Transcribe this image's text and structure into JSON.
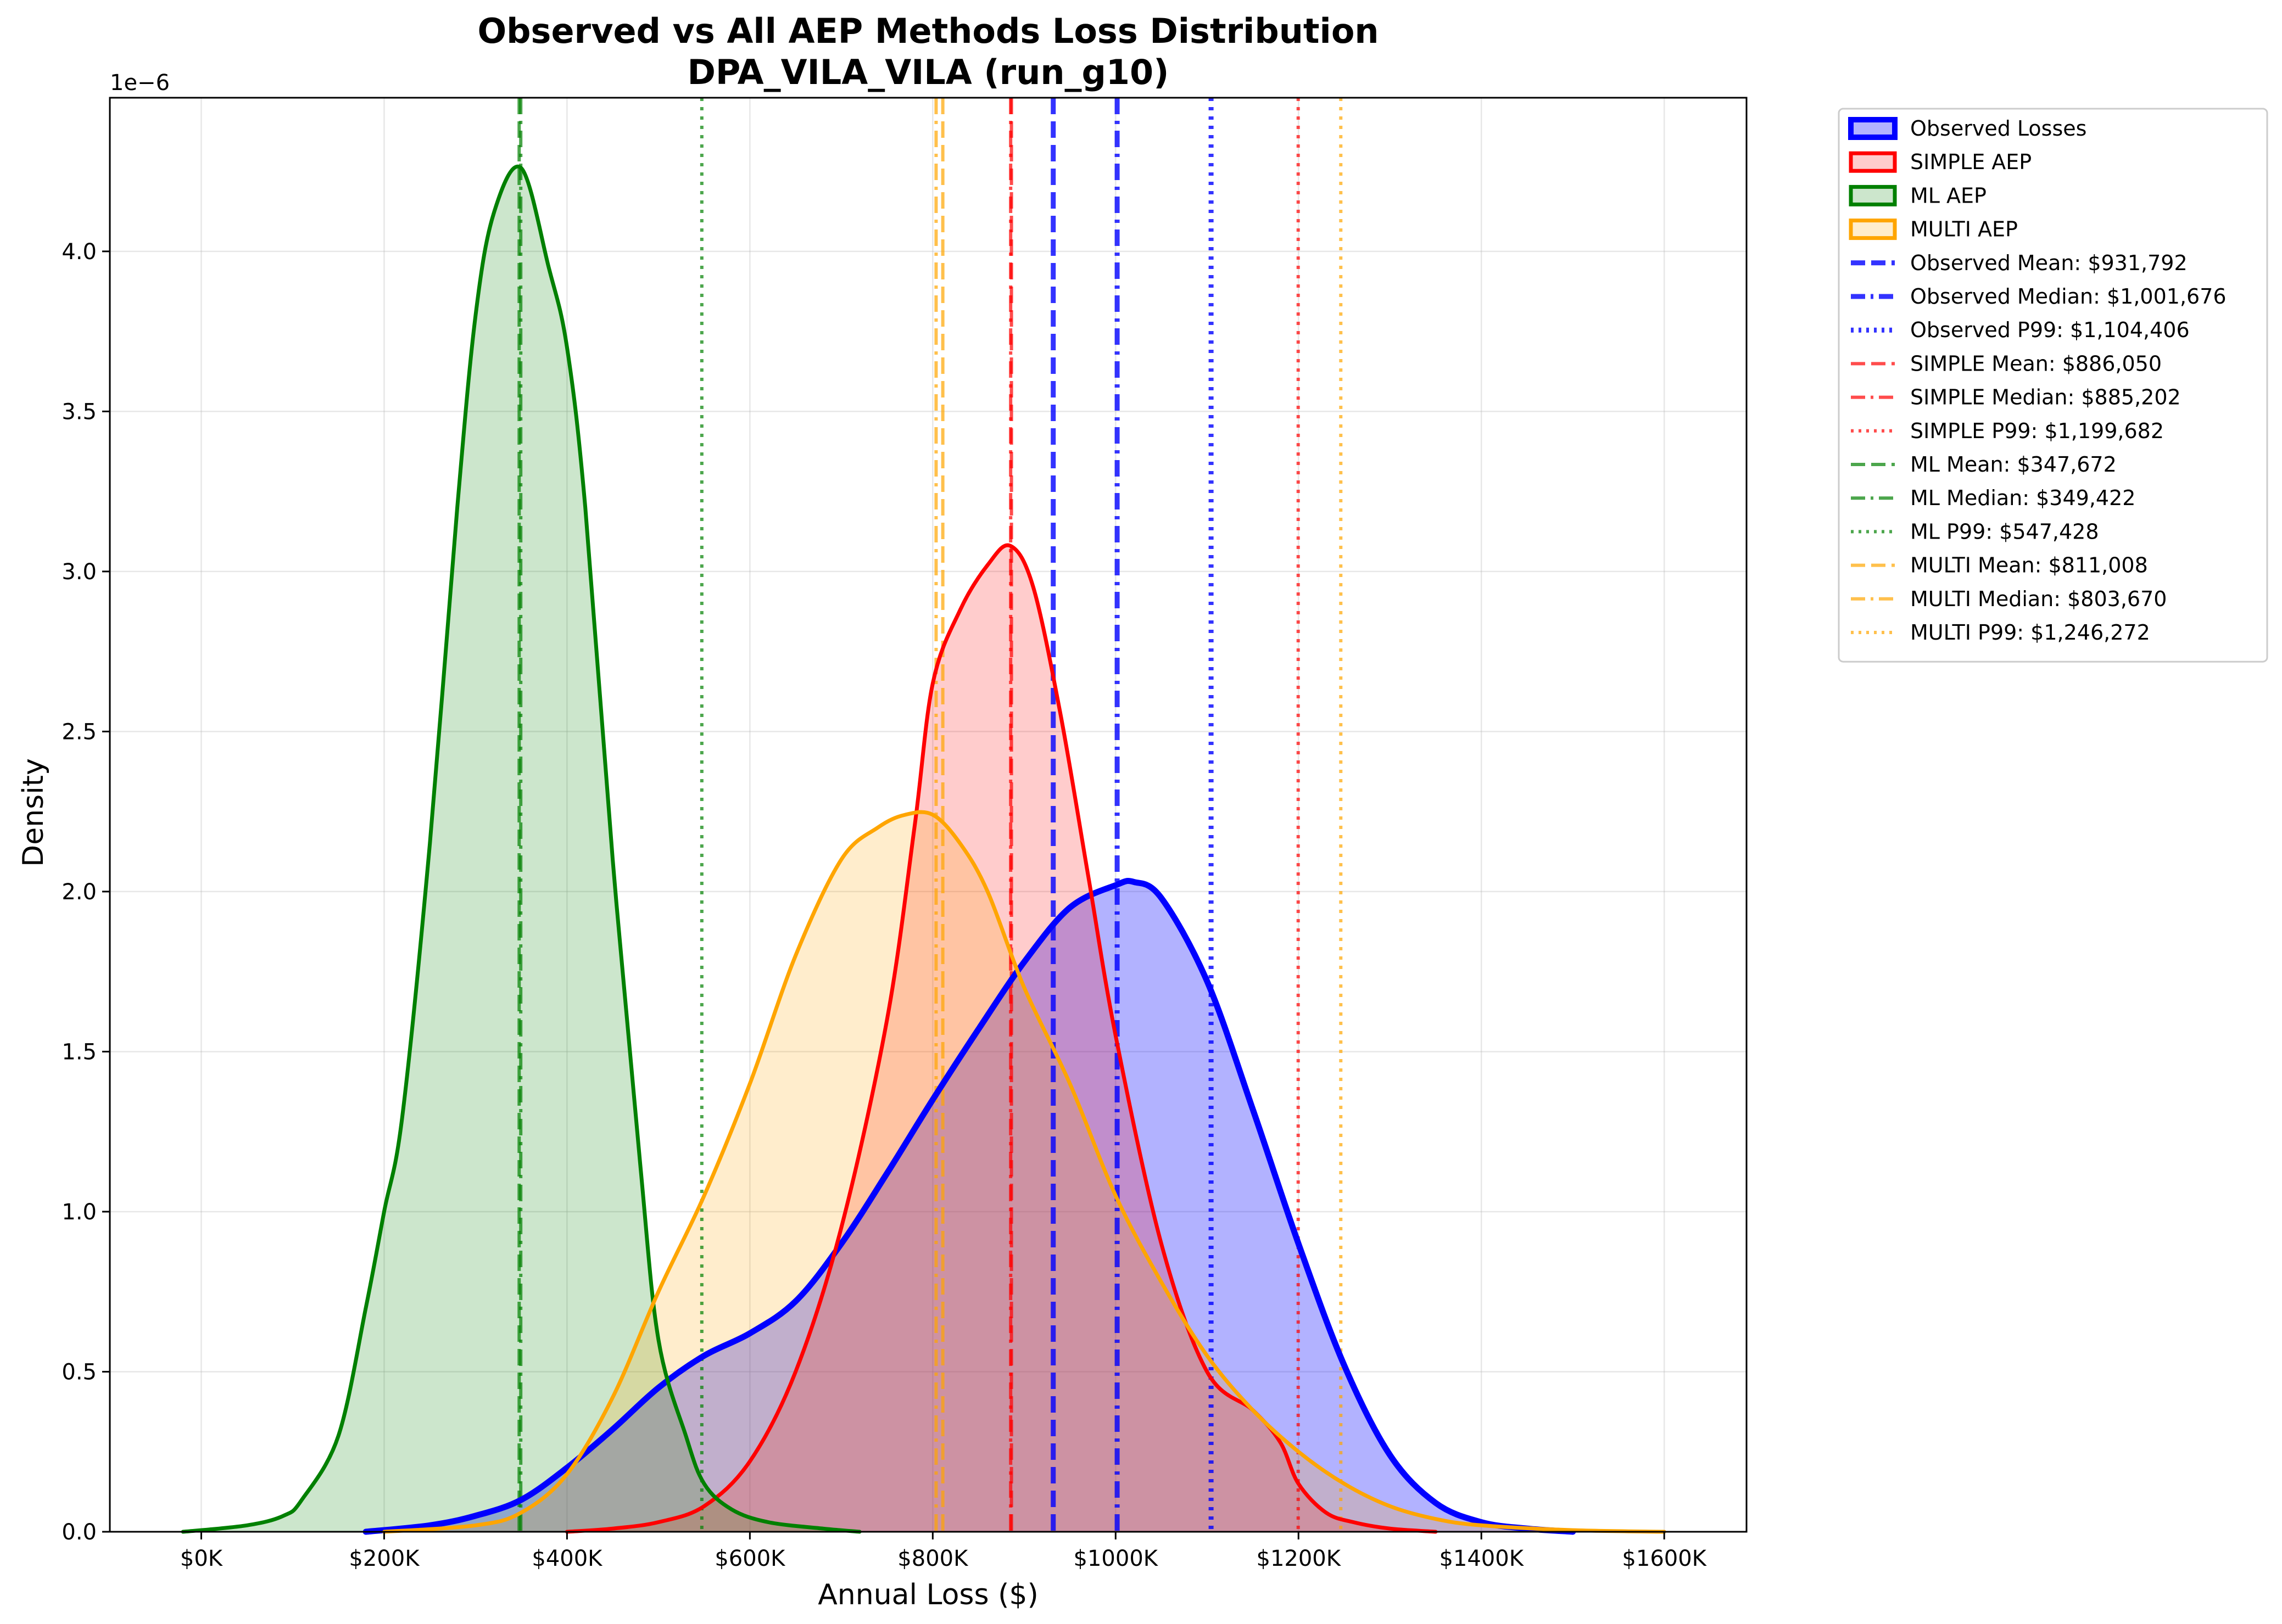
{
  "chart_data": {
    "type": "area",
    "title": "Observed vs All AEP Methods Loss Distribution",
    "subtitle": "DPA_VILA_VILA (run_g10)",
    "xlabel": "Annual Loss ($)",
    "ylabel": "Density",
    "y_scale_label": "1e−6",
    "y_multiplier": 1e-06,
    "xlim": [
      -100000,
      1690000
    ],
    "ylim": [
      0,
      4.48
    ],
    "x_ticks": [
      0,
      200000,
      400000,
      600000,
      800000,
      1000000,
      1200000,
      1400000,
      1600000
    ],
    "x_tick_labels": [
      "$0K",
      "$200K",
      "$400K",
      "$600K",
      "$800K",
      "$1000K",
      "$1200K",
      "$1400K",
      "$1600K"
    ],
    "y_ticks": [
      0,
      0.5,
      1.0,
      1.5,
      2.0,
      2.5,
      3.0,
      3.5,
      4.0
    ],
    "y_tick_labels": [
      "0.0",
      "0.5",
      "1.0",
      "1.5",
      "2.0",
      "2.5",
      "3.0",
      "3.5",
      "4.0"
    ],
    "grid": true,
    "legend_position": "outside-right-top",
    "series": [
      {
        "name": "Observed Losses",
        "color": "#0000ff",
        "fill_alpha": 0.3,
        "line_width": 11,
        "x": [
          180000,
          250000,
          300000,
          350000,
          400000,
          450000,
          500000,
          550000,
          600000,
          650000,
          700000,
          750000,
          800000,
          850000,
          900000,
          950000,
          1000000,
          1020000,
          1050000,
          1100000,
          1150000,
          1200000,
          1250000,
          1300000,
          1350000,
          1400000,
          1450000,
          1500000
        ],
        "y": [
          0.0,
          0.02,
          0.05,
          0.1,
          0.2,
          0.32,
          0.45,
          0.55,
          0.62,
          0.72,
          0.9,
          1.12,
          1.35,
          1.57,
          1.78,
          1.95,
          2.02,
          2.03,
          1.98,
          1.72,
          1.32,
          0.9,
          0.52,
          0.24,
          0.09,
          0.03,
          0.01,
          0.0
        ]
      },
      {
        "name": "SIMPLE AEP",
        "color": "#ff0000",
        "fill_alpha": 0.2,
        "line_width": 7,
        "x": [
          400000,
          450000,
          500000,
          550000,
          600000,
          650000,
          700000,
          750000,
          780000,
          800000,
          830000,
          860000,
          885000,
          910000,
          940000,
          970000,
          1000000,
          1050000,
          1100000,
          1150000,
          1180000,
          1200000,
          1230000,
          1260000,
          1300000,
          1350000
        ],
        "y": [
          0.0,
          0.01,
          0.03,
          0.08,
          0.22,
          0.5,
          0.95,
          1.6,
          2.2,
          2.65,
          2.88,
          3.02,
          3.08,
          2.95,
          2.55,
          2.05,
          1.55,
          0.9,
          0.5,
          0.38,
          0.28,
          0.15,
          0.06,
          0.03,
          0.01,
          0.0
        ]
      },
      {
        "name": "ML AEP",
        "color": "#008000",
        "fill_alpha": 0.2,
        "line_width": 7,
        "x": [
          -20000,
          50000,
          90000,
          110000,
          150000,
          180000,
          200000,
          220000,
          250000,
          280000,
          300000,
          320000,
          350000,
          380000,
          400000,
          420000,
          450000,
          480000,
          500000,
          530000,
          550000,
          580000,
          620000,
          680000,
          720000
        ],
        "y": [
          0.0,
          0.02,
          0.05,
          0.1,
          0.3,
          0.7,
          1.0,
          1.3,
          2.15,
          3.2,
          3.8,
          4.12,
          4.26,
          3.95,
          3.7,
          3.2,
          2.1,
          1.15,
          0.6,
          0.3,
          0.15,
          0.07,
          0.03,
          0.01,
          0.0
        ]
      },
      {
        "name": "MULTI AEP",
        "color": "#ffa500",
        "fill_alpha": 0.2,
        "line_width": 7,
        "x": [
          200000,
          300000,
          350000,
          400000,
          450000,
          500000,
          550000,
          600000,
          650000,
          700000,
          740000,
          770000,
          800000,
          830000,
          860000,
          900000,
          950000,
          1000000,
          1050000,
          1100000,
          1150000,
          1200000,
          1250000,
          1300000,
          1350000,
          1400000,
          1500000,
          1600000
        ],
        "y": [
          0.0,
          0.02,
          0.06,
          0.18,
          0.42,
          0.75,
          1.05,
          1.4,
          1.8,
          2.1,
          2.2,
          2.24,
          2.24,
          2.15,
          2.0,
          1.7,
          1.4,
          1.05,
          0.78,
          0.55,
          0.38,
          0.25,
          0.15,
          0.08,
          0.04,
          0.02,
          0.005,
          0.0
        ]
      }
    ],
    "reference_lines": [
      {
        "label": "Observed Mean: $931,792",
        "value": 931792,
        "color": "#0000ff",
        "style": "dashed",
        "alpha": 0.8,
        "width": 9
      },
      {
        "label": "Observed Median: $1,001,676",
        "value": 1001676,
        "color": "#0000ff",
        "style": "dashdot",
        "alpha": 0.8,
        "width": 9
      },
      {
        "label": "Observed P99: $1,104,406",
        "value": 1104406,
        "color": "#0000ff",
        "style": "dotted",
        "alpha": 0.8,
        "width": 9
      },
      {
        "label": "SIMPLE Mean: $886,050",
        "value": 886050,
        "color": "#ff0000",
        "style": "dashed",
        "alpha": 0.7,
        "width": 6
      },
      {
        "label": "SIMPLE Median: $885,202",
        "value": 885202,
        "color": "#ff0000",
        "style": "dashdot",
        "alpha": 0.7,
        "width": 6
      },
      {
        "label": "SIMPLE P99: $1,199,682",
        "value": 1199682,
        "color": "#ff0000",
        "style": "dotted",
        "alpha": 0.7,
        "width": 6
      },
      {
        "label": "ML Mean: $347,672",
        "value": 347672,
        "color": "#008000",
        "style": "dashed",
        "alpha": 0.7,
        "width": 6
      },
      {
        "label": "ML Median: $349,422",
        "value": 349422,
        "color": "#008000",
        "style": "dashdot",
        "alpha": 0.7,
        "width": 6
      },
      {
        "label": "ML P99: $547,428",
        "value": 547428,
        "color": "#008000",
        "style": "dotted",
        "alpha": 0.7,
        "width": 6
      },
      {
        "label": "MULTI Mean: $811,008",
        "value": 811008,
        "color": "#ffa500",
        "style": "dashed",
        "alpha": 0.7,
        "width": 6
      },
      {
        "label": "MULTI Median: $803,670",
        "value": 803670,
        "color": "#ffa500",
        "style": "dashdot",
        "alpha": 0.7,
        "width": 6
      },
      {
        "label": "MULTI P99: $1,246,272",
        "value": 1246272,
        "color": "#ffa500",
        "style": "dotted",
        "alpha": 0.7,
        "width": 6
      }
    ]
  }
}
